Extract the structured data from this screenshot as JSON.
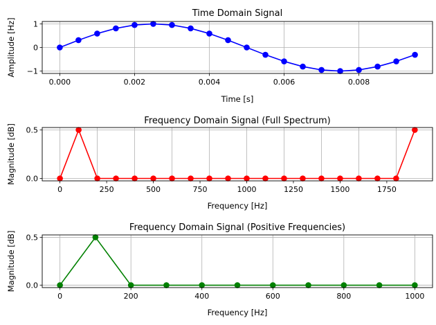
{
  "chart_data": [
    {
      "type": "line",
      "title": "Time Domain Signal",
      "xlabel": "Time [s]",
      "ylabel": "Amplitude [Hz]",
      "xlim": [
        -0.00047,
        0.00997
      ],
      "ylim": [
        -1.1,
        1.1
      ],
      "xticks": [
        0.0,
        0.002,
        0.004,
        0.006,
        0.008
      ],
      "xtick_labels": [
        "0.000",
        "0.002",
        "0.004",
        "0.006",
        "0.008"
      ],
      "yticks": [
        -1,
        0,
        1
      ],
      "ytick_labels": [
        "−1",
        "0",
        "1"
      ],
      "grid": true,
      "color": "#0000ff",
      "marker": "circle",
      "series": [
        {
          "x": [
            0.0,
            0.0005,
            0.001,
            0.0015,
            0.002,
            0.0025,
            0.003,
            0.0035,
            0.004,
            0.0045,
            0.005,
            0.0055,
            0.006,
            0.0065,
            0.007,
            0.0075,
            0.008,
            0.0085,
            0.009,
            0.0095
          ],
          "y": [
            0.0,
            0.309,
            0.588,
            0.809,
            0.951,
            1.0,
            0.951,
            0.809,
            0.588,
            0.309,
            0.0,
            -0.309,
            -0.588,
            -0.809,
            -0.951,
            -1.0,
            -0.951,
            -0.809,
            -0.588,
            -0.309
          ]
        }
      ]
    },
    {
      "type": "line",
      "title": "Frequency Domain Signal (Full Spectrum)",
      "xlabel": "Frequency [Hz]",
      "ylabel": "Magnitude [dB]",
      "xlim": [
        -95,
        1995
      ],
      "ylim": [
        -0.025,
        0.525
      ],
      "xticks": [
        0,
        250,
        500,
        750,
        1000,
        1250,
        1500,
        1750
      ],
      "xtick_labels": [
        "0",
        "250",
        "500",
        "750",
        "1000",
        "1250",
        "1500",
        "1750"
      ],
      "xgrid": [
        0,
        200,
        400,
        600,
        800,
        1000,
        1200,
        1400,
        1600,
        1800
      ],
      "yticks": [
        0.0,
        0.5
      ],
      "ytick_labels": [
        "0.0",
        "0.5"
      ],
      "grid": true,
      "color": "#ff0000",
      "marker": "circle",
      "series": [
        {
          "x": [
            0,
            100,
            200,
            300,
            400,
            500,
            600,
            700,
            800,
            900,
            1000,
            1100,
            1200,
            1300,
            1400,
            1500,
            1600,
            1700,
            1800,
            1900
          ],
          "y": [
            0.0,
            0.5,
            0.0,
            0.0,
            0.0,
            0.0,
            0.0,
            0.0,
            0.0,
            0.0,
            0.0,
            0.0,
            0.0,
            0.0,
            0.0,
            0.0,
            0.0,
            0.0,
            0.0,
            0.5
          ]
        }
      ]
    },
    {
      "type": "line",
      "title": "Frequency Domain Signal (Positive Frequencies)",
      "xlabel": "Frequency [Hz]",
      "ylabel": "Magnitude [dB]",
      "xlim": [
        -50,
        1050
      ],
      "ylim": [
        -0.025,
        0.525
      ],
      "xticks": [
        0,
        200,
        400,
        600,
        800,
        1000
      ],
      "xtick_labels": [
        "0",
        "200",
        "400",
        "600",
        "800",
        "1000"
      ],
      "yticks": [
        0.0,
        0.5
      ],
      "ytick_labels": [
        "0.0",
        "0.5"
      ],
      "grid": true,
      "color": "#008000",
      "marker": "circle",
      "series": [
        {
          "x": [
            0,
            100,
            200,
            300,
            400,
            500,
            600,
            700,
            800,
            900,
            1000
          ],
          "y": [
            0.0,
            0.5,
            0.0,
            0.0,
            0.0,
            0.0,
            0.0,
            0.0,
            0.0,
            0.0,
            0.0
          ]
        }
      ]
    }
  ]
}
